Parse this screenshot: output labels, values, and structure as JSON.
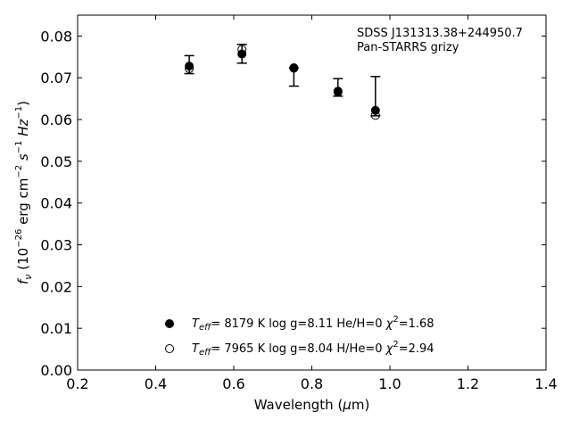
{
  "chart_data": {
    "type": "scatter",
    "annotation": [
      "SDSS J131313.38+244950.7",
      "Pan-STARRS grizy"
    ],
    "xlabel": {
      "pre": "Wavelength (",
      "greek": "μ",
      "post": "m)"
    },
    "ylabel": {
      "main": "f",
      "sub": "ν",
      "u1": " (10",
      "s1": "−26",
      "u2": " erg cm",
      "s2": "−2",
      "u3": " s",
      "s3": "−1",
      "u4": " Hz",
      "s4": "−1",
      "u5": ")"
    },
    "xlim": [
      0.2,
      1.4
    ],
    "ylim": [
      0.0,
      0.085
    ],
    "xticks": [
      0.2,
      0.4,
      0.6,
      0.8,
      1.0,
      1.2,
      1.4
    ],
    "xtick_labels": [
      "0.2",
      "0.4",
      "0.6",
      "0.8",
      "1.0",
      "1.2",
      "1.4"
    ],
    "yticks": [
      0.0,
      0.01,
      0.02,
      0.03,
      0.04,
      0.05,
      0.06,
      0.07,
      0.08
    ],
    "ytick_labels": [
      "0.00",
      "0.01",
      "0.02",
      "0.03",
      "0.04",
      "0.05",
      "0.06",
      "0.07",
      "0.08"
    ],
    "grid": false,
    "legend_position": "bottom-center",
    "observed": {
      "x": [
        0.486,
        0.621,
        0.754,
        0.867,
        0.963
      ],
      "y": [
        0.0722,
        0.0757,
        0.0722,
        0.0667,
        0.0614
      ],
      "yerr_low": [
        0.0012,
        0.0022,
        0.0042,
        0.0011,
        0.0005
      ],
      "yerr_high": [
        0.0031,
        0.0023,
        0.0002,
        0.0031,
        0.0089
      ]
    },
    "series": [
      {
        "marker": "filled-circle",
        "x": [
          0.486,
          0.621,
          0.754,
          0.867,
          0.963
        ],
        "y": [
          0.0728,
          0.0757,
          0.0724,
          0.0668,
          0.0622
        ],
        "legend": {
          "t": "T",
          "sub": "eff",
          "rest": "=  8179 K  log g=8.11  He/H=0  ",
          "chi": "χ",
          "sup": "2",
          "end": "=1.68"
        }
      },
      {
        "marker": "open-circle",
        "x": [
          0.486,
          0.621,
          0.754,
          0.867,
          0.963
        ],
        "y": [
          0.0722,
          0.0768,
          0.0723,
          0.0666,
          0.061
        ],
        "legend": {
          "t": "T",
          "sub": "eff",
          "rest": "=  7965 K  log g=8.04  H/He=0  ",
          "chi": "χ",
          "sup": "2",
          "end": "=2.94"
        }
      }
    ]
  }
}
